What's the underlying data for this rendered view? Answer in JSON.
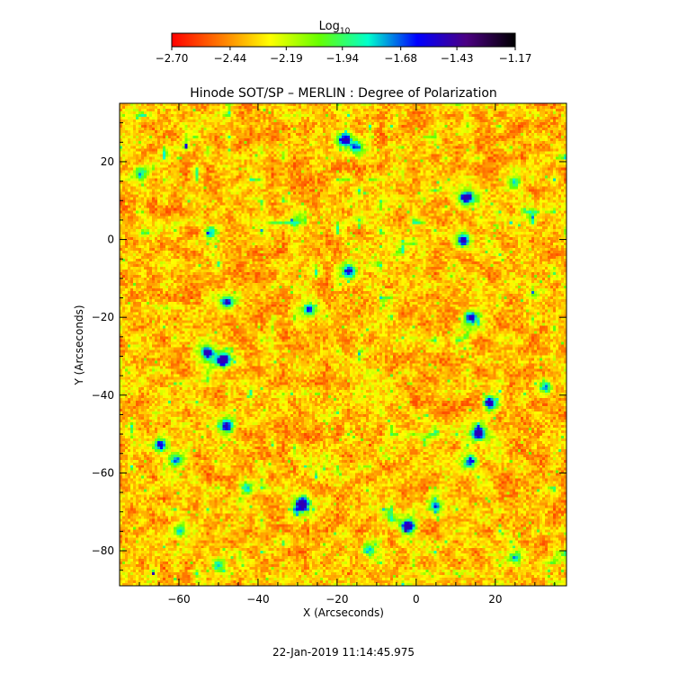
{
  "chart_data": {
    "type": "heatmap",
    "title": "Hinode SOT/SP – MERLIN : Degree of Polarization",
    "xlabel": "X (Arcseconds)",
    "ylabel": "Y (Arcseconds)",
    "xlim": [
      -75,
      38
    ],
    "ylim": [
      -89,
      35
    ],
    "x_ticks": [
      -60,
      -40,
      -20,
      0,
      20
    ],
    "x_tick_labels": [
      "−60",
      "−40",
      "−20",
      "0",
      "20"
    ],
    "y_ticks": [
      20,
      0,
      -20,
      -40,
      -60,
      -80
    ],
    "y_tick_labels": [
      "20",
      "0",
      "−20",
      "−40",
      "−60",
      "−80"
    ],
    "colorbar": {
      "title_base": "Log",
      "title_sub": "10",
      "range": [
        -2.7,
        -1.17
      ],
      "ticks": [
        -2.7,
        -2.44,
        -2.19,
        -1.94,
        -1.68,
        -1.43,
        -1.17
      ],
      "tick_labels": [
        "−2.70",
        "−2.44",
        "−2.19",
        "−1.94",
        "−1.68",
        "−1.43",
        "−1.17"
      ],
      "colors": [
        "#ff0000",
        "#ff7a00",
        "#ffff00",
        "#66ff00",
        "#00ffcc",
        "#0000ff",
        "#4b0082",
        "#000000"
      ]
    },
    "timestamp": "22-Jan-2019 11:14:45.975",
    "features": [
      {
        "x": 13,
        "y": 11,
        "strength": 1.0
      },
      {
        "x": 12,
        "y": 0,
        "strength": 0.8
      },
      {
        "x": -49,
        "y": -31,
        "strength": 1.0
      },
      {
        "x": -53,
        "y": -29,
        "strength": 0.9
      },
      {
        "x": -48,
        "y": -16,
        "strength": 0.8
      },
      {
        "x": -18,
        "y": 26,
        "strength": 0.8
      },
      {
        "x": -15,
        "y": 24,
        "strength": 0.6
      },
      {
        "x": -17,
        "y": -8,
        "strength": 0.7
      },
      {
        "x": -27,
        "y": -18,
        "strength": 0.6
      },
      {
        "x": 14,
        "y": -20,
        "strength": 0.8
      },
      {
        "x": 19,
        "y": -42,
        "strength": 0.8
      },
      {
        "x": 16,
        "y": -50,
        "strength": 0.9
      },
      {
        "x": 14,
        "y": -57,
        "strength": 0.7
      },
      {
        "x": -65,
        "y": -53,
        "strength": 0.8
      },
      {
        "x": -61,
        "y": -57,
        "strength": 0.6
      },
      {
        "x": -48,
        "y": -48,
        "strength": 0.7
      },
      {
        "x": -29,
        "y": -68,
        "strength": 0.9
      },
      {
        "x": -2,
        "y": -74,
        "strength": 1.0
      },
      {
        "x": 5,
        "y": -69,
        "strength": 0.6
      },
      {
        "x": -43,
        "y": -64,
        "strength": 0.5
      },
      {
        "x": -60,
        "y": -75,
        "strength": 0.5
      },
      {
        "x": -50,
        "y": -84,
        "strength": 0.5
      },
      {
        "x": -70,
        "y": 17,
        "strength": 0.5
      },
      {
        "x": -52,
        "y": 2,
        "strength": 0.5
      },
      {
        "x": 25,
        "y": 15,
        "strength": 0.5
      },
      {
        "x": 33,
        "y": -38,
        "strength": 0.5
      },
      {
        "x": 25,
        "y": -82,
        "strength": 0.5
      },
      {
        "x": -12,
        "y": -80,
        "strength": 0.5
      }
    ]
  }
}
